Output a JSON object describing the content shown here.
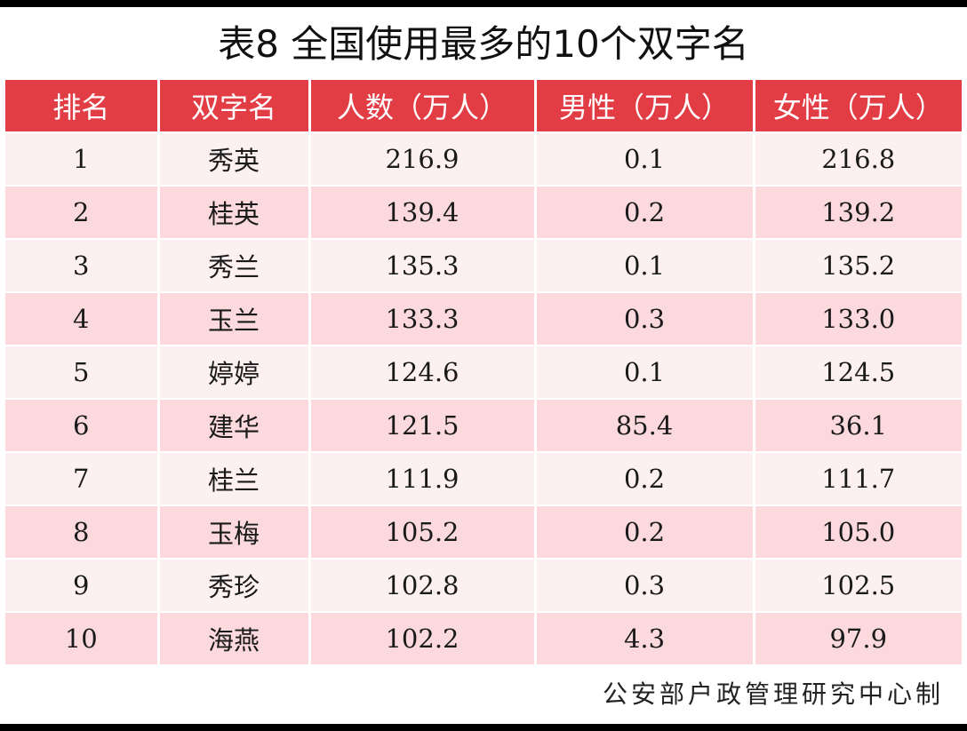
{
  "title": "表8  全国使用最多的10个双字名",
  "headers": [
    "排名",
    "双字名",
    "人数（万人）",
    "男性（万人）",
    "女性（万人）"
  ],
  "rows": [
    [
      "1",
      "秀英",
      "216.9",
      "0.1",
      "216.8"
    ],
    [
      "2",
      "桂英",
      "139.4",
      "0.2",
      "139.2"
    ],
    [
      "3",
      "秀兰",
      "135.3",
      "0.1",
      "135.2"
    ],
    [
      "4",
      "玉兰",
      "133.3",
      "0.3",
      "133.0"
    ],
    [
      "5",
      "婷婷",
      "124.6",
      "0.1",
      "124.5"
    ],
    [
      "6",
      "建华",
      "121.5",
      "85.4",
      "36.1"
    ],
    [
      "7",
      "桂兰",
      "111.9",
      "0.2",
      "111.7"
    ],
    [
      "8",
      "玉梅",
      "105.2",
      "0.2",
      "105.0"
    ],
    [
      "9",
      "秀珍",
      "102.8",
      "0.3",
      "102.5"
    ],
    [
      "10",
      "海燕",
      "102.2",
      "4.3",
      "97.9"
    ]
  ],
  "footer": "公安部户政管理研究中心制",
  "colors": {
    "header_bg": "#e23c45",
    "row_light": "#fdf0f1",
    "row_dark": "#fbd9dd",
    "frame_bar": "#000000"
  }
}
